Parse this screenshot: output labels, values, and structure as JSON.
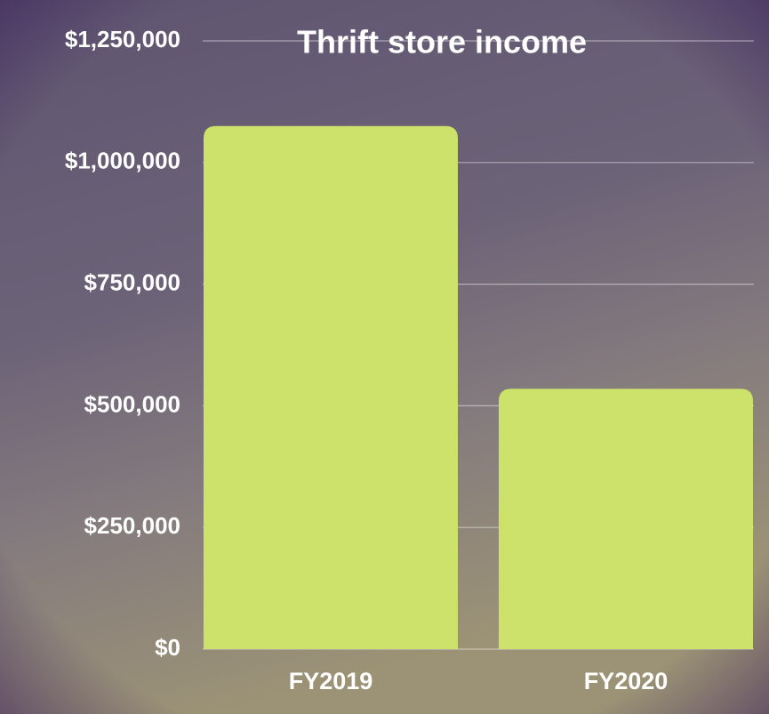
{
  "chart_data": {
    "type": "bar",
    "title": "Thrift store income",
    "categories": [
      "FY2019",
      "FY2020"
    ],
    "values": [
      1075000,
      535000
    ],
    "color": "#cce26a",
    "ylim": [
      0,
      1250000
    ],
    "yticks": [
      {
        "value": 0,
        "label": "$0"
      },
      {
        "value": 250000,
        "label": "$250,000"
      },
      {
        "value": 500000,
        "label": "$500,000"
      },
      {
        "value": 750000,
        "label": "$750,000"
      },
      {
        "value": 1000000,
        "label": "$1,000,000"
      },
      {
        "value": 1250000,
        "label": "$1,250,000"
      }
    ],
    "grid": true
  }
}
